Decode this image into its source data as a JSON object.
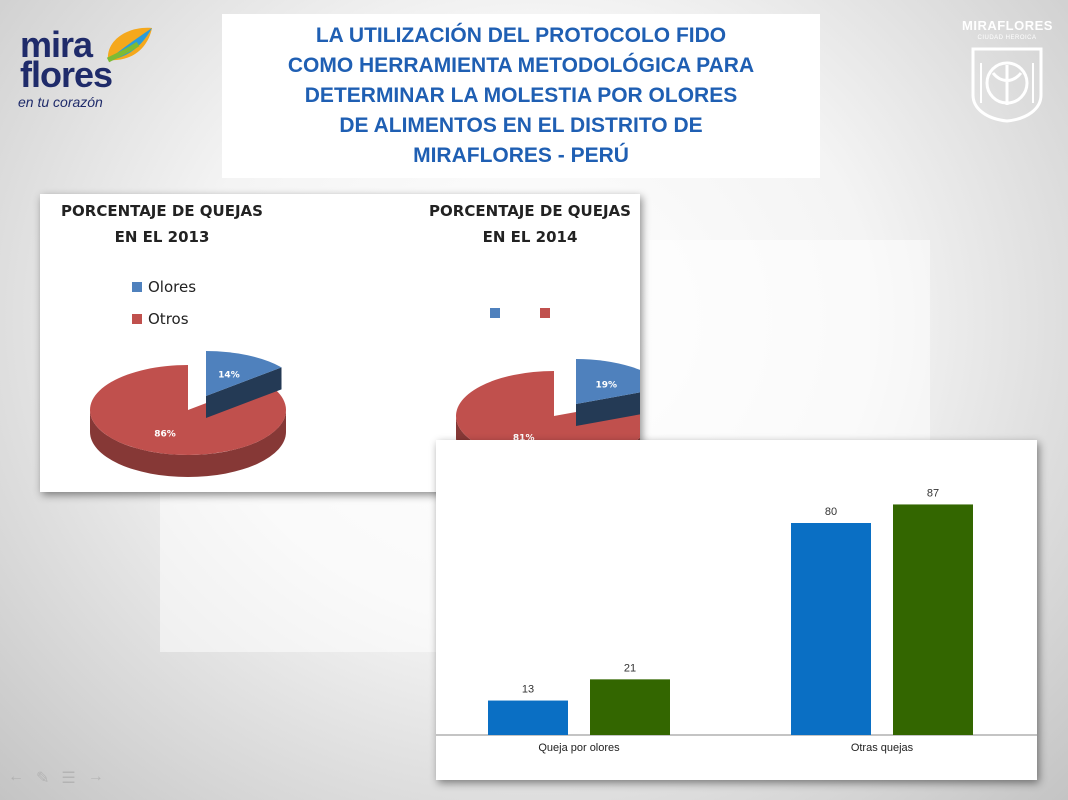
{
  "logo_left": {
    "brand_line1": "mira",
    "brand_line2": "flores",
    "tagline": "en tu corazón"
  },
  "title": {
    "lines": [
      "LA UTILIZACIÓN DEL PROTOCOLO FIDO",
      "COMO HERRAMIENTA METODOLÓGICA PARA",
      "DETERMINAR LA MOLESTIA POR OLORES",
      "DE ALIMENTOS EN EL DISTRITO DE",
      "MIRAFLORES - PERÚ"
    ]
  },
  "logo_right": {
    "name": "MIRAFLORES",
    "sub": "CIUDAD  HEROICA"
  },
  "colors": {
    "title": "#1f5fb3",
    "olores": "#4f81bd",
    "otros": "#c0504d",
    "bar_blue": "#0a6fc4",
    "bar_green": "#336600"
  },
  "pies": [
    {
      "title_line1": "PORCENTAJE DE QUEJAS",
      "title_line2": "EN EL 2013",
      "legend": [
        "Olores",
        "Otros"
      ]
    },
    {
      "title_line1": "PORCENTAJE DE QUEJAS",
      "title_line2": "EN EL 2014",
      "legend": [
        "",
        ""
      ]
    }
  ],
  "chart_data": [
    {
      "type": "pie",
      "title": "PORCENTAJE DE QUEJAS EN EL 2013",
      "categories": [
        "Olores",
        "Otros"
      ],
      "values": [
        14,
        86
      ],
      "labels": [
        "14%",
        "86%"
      ],
      "legend": "left"
    },
    {
      "type": "pie",
      "title": "PORCENTAJE DE QUEJAS EN EL 2014",
      "categories": [
        "",
        ""
      ],
      "values": [
        19,
        81
      ],
      "labels": [
        "19%",
        "81%"
      ],
      "legend": "top"
    },
    {
      "type": "bar",
      "categories": [
        "Queja por olores",
        "Otras quejas"
      ],
      "series": [
        {
          "values": [
            13,
            80
          ]
        },
        {
          "values": [
            21,
            87
          ]
        }
      ],
      "ylim": [
        0,
        100
      ],
      "grid": false
    }
  ]
}
